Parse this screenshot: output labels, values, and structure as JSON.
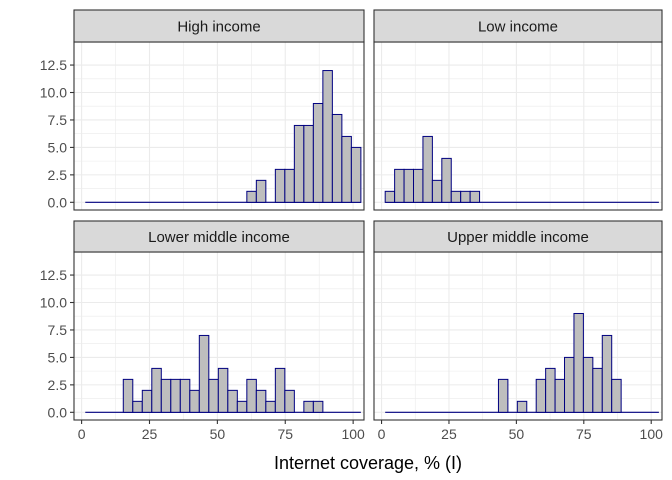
{
  "chart_data": {
    "type": "bar",
    "subtype": "faceted-histogram",
    "xlabel": "Internet coverage, % (I)",
    "ylabel": "",
    "xlim": [
      0,
      100
    ],
    "ylim": [
      0,
      12.5
    ],
    "x_ticks": [
      "0",
      "25",
      "50",
      "75",
      "100"
    ],
    "y_ticks": [
      "0.0",
      "2.5",
      "5.0",
      "7.5",
      "10.0",
      "12.5"
    ],
    "bin_width": 3.5,
    "bin_centers": [
      3.1,
      6.6,
      10.1,
      13.6,
      17.1,
      20.6,
      24.1,
      27.6,
      31.1,
      34.6,
      38.1,
      41.6,
      45.1,
      48.6,
      52.1,
      55.6,
      59.1,
      62.6,
      66.1,
      69.6,
      73.1,
      76.6,
      80.1,
      83.6,
      87.1,
      90.6,
      94.1,
      97.6,
      101.1
    ],
    "grid": true,
    "colors": {
      "bar_fill": "#bebebe",
      "bar_outline": "#000080",
      "strip_fill": "#d9d9d9",
      "panel_border": "#333333",
      "grid": "#ebebeb"
    },
    "facets": [
      {
        "name": "High income",
        "values": [
          0,
          0,
          0,
          0,
          0,
          0,
          0,
          0,
          0,
          0,
          0,
          0,
          0,
          0,
          0,
          0,
          0,
          1,
          2,
          0,
          3,
          3,
          7,
          7,
          9,
          12,
          8,
          6,
          5
        ]
      },
      {
        "name": "Low income",
        "values": [
          1,
          3,
          3,
          3,
          6,
          2,
          4,
          1,
          1,
          1,
          0,
          0,
          0,
          0,
          0,
          0,
          0,
          0,
          0,
          0,
          0,
          0,
          0,
          0,
          0,
          0,
          0,
          0,
          0
        ]
      },
      {
        "name": "Lower middle income",
        "values": [
          0,
          0,
          0,
          0,
          3,
          1,
          2,
          4,
          3,
          3,
          3,
          2,
          7,
          3,
          4,
          2,
          1,
          3,
          2,
          1,
          4,
          2,
          0,
          1,
          1,
          0,
          0,
          0,
          0
        ]
      },
      {
        "name": "Upper middle income",
        "values": [
          0,
          0,
          0,
          0,
          0,
          0,
          0,
          0,
          0,
          0,
          0,
          0,
          3,
          0,
          1,
          0,
          3,
          4,
          3,
          5,
          9,
          5,
          4,
          7,
          3,
          0,
          0,
          0,
          0
        ]
      }
    ]
  }
}
